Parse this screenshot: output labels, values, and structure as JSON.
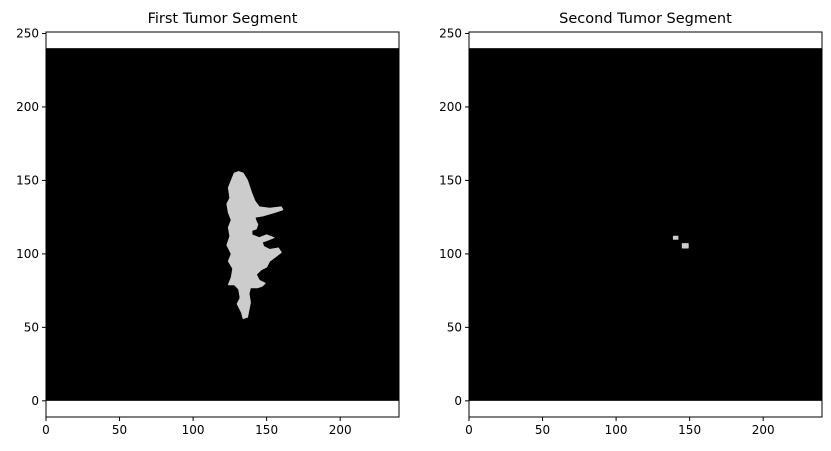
{
  "figure": {
    "background": "#ffffff",
    "image_background_color": "#000000",
    "segment_color": "#cccccc"
  },
  "chart_data": [
    {
      "type": "heatmap",
      "title": "First Tumor Segment",
      "xlabel": "",
      "ylabel": "",
      "xlim": [
        0,
        240
      ],
      "ylim": [
        -11,
        251
      ],
      "image_extent": {
        "x": [
          0,
          240
        ],
        "y": [
          0,
          240
        ]
      },
      "xticks": [
        0,
        50,
        100,
        150,
        200
      ],
      "yticks": [
        0,
        50,
        100,
        150,
        200,
        250
      ],
      "grid": false,
      "mask_regions": [
        {
          "label": "segment",
          "outline": [
            [
              131,
              156
            ],
            [
              134,
              155
            ],
            [
              137,
              150
            ],
            [
              140,
              141
            ],
            [
              142,
              136
            ],
            [
              145,
              132
            ],
            [
              152,
              131
            ],
            [
              160,
              132
            ],
            [
              161,
              130
            ],
            [
              155,
              128
            ],
            [
              148,
              126
            ],
            [
              142,
              125
            ],
            [
              143,
              122
            ],
            [
              144,
              120
            ],
            [
              143,
              117
            ],
            [
              140,
              116
            ],
            [
              140,
              113
            ],
            [
              145,
              111
            ],
            [
              150,
              113
            ],
            [
              155,
              111
            ],
            [
              150,
              109
            ],
            [
              147,
              108
            ],
            [
              148,
              105
            ],
            [
              152,
              103
            ],
            [
              158,
              104
            ],
            [
              160,
              101
            ],
            [
              156,
              98
            ],
            [
              152,
              95
            ],
            [
              150,
              91
            ],
            [
              146,
              89
            ],
            [
              143,
              86
            ],
            [
              145,
              82
            ],
            [
              149,
              80
            ],
            [
              147,
              78
            ],
            [
              144,
              77
            ],
            [
              139,
              77
            ],
            [
              138,
              73
            ],
            [
              139,
              67
            ],
            [
              138,
              62
            ],
            [
              137,
              57
            ],
            [
              134,
              56
            ],
            [
              133,
              60
            ],
            [
              130,
              66
            ],
            [
              132,
              70
            ],
            [
              131,
              76
            ],
            [
              128,
              79
            ],
            [
              124,
              79
            ],
            [
              126,
              84
            ],
            [
              127,
              90
            ],
            [
              124,
              95
            ],
            [
              126,
              100
            ],
            [
              123,
              106
            ],
            [
              125,
              112
            ],
            [
              124,
              118
            ],
            [
              126,
              123
            ],
            [
              124,
              128
            ],
            [
              123,
              134
            ],
            [
              125,
              138
            ],
            [
              124,
              145
            ],
            [
              126,
              150
            ],
            [
              128,
              155
            ]
          ]
        }
      ]
    },
    {
      "type": "heatmap",
      "title": "Second Tumor Segment",
      "xlabel": "",
      "ylabel": "",
      "xlim": [
        0,
        240
      ],
      "ylim": [
        -11,
        251
      ],
      "image_extent": {
        "x": [
          0,
          240
        ],
        "y": [
          0,
          240
        ]
      },
      "xticks": [
        0,
        50,
        100,
        150,
        200
      ],
      "yticks": [
        0,
        50,
        100,
        150,
        200,
        250
      ],
      "grid": false,
      "mask_regions": [
        {
          "label": "segment",
          "outline": [
            [
              139,
              112
            ],
            [
              142,
              112
            ],
            [
              142,
              110
            ],
            [
              139,
              110
            ]
          ]
        },
        {
          "label": "segment",
          "outline": [
            [
              145,
              107
            ],
            [
              149,
              107
            ],
            [
              149,
              104
            ],
            [
              145,
              104
            ]
          ]
        }
      ]
    }
  ]
}
